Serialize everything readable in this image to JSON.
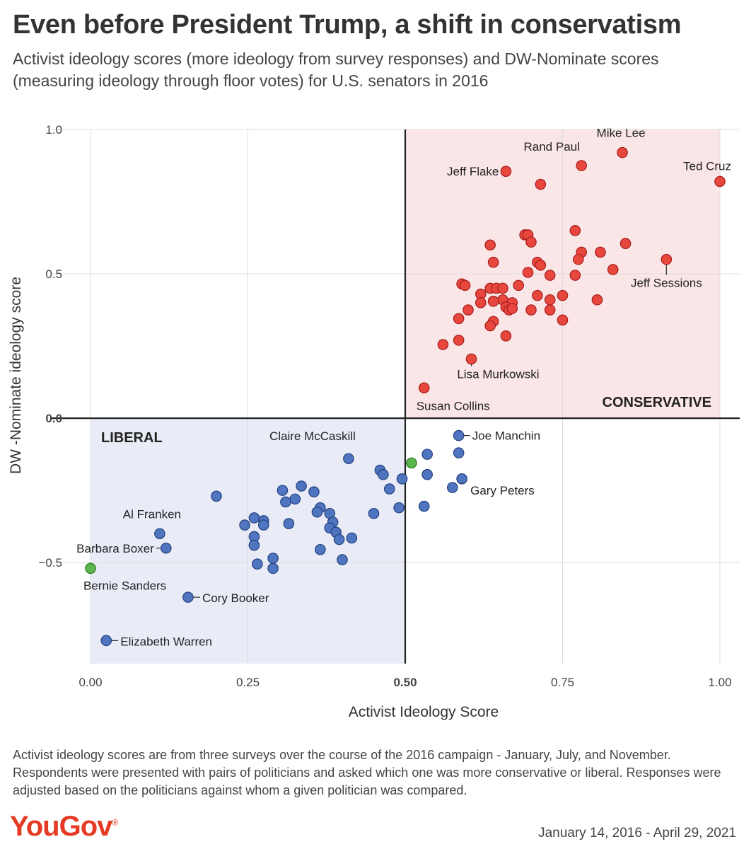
{
  "title": "Even before President Trump, a shift in conservatism",
  "subtitle": "Activist ideology scores (more ideology from survey responses) and DW-Nominate scores (measuring ideology through floor votes) for U.S. senators in 2016",
  "footnote": "Activist ideology scores are from three surveys over the course of the 2016 campaign - January, July, and November. Respondents were presented with pairs of politicians and asked which one was more conservative or liberal. Responses were adjusted based on the politicians against whom a given politician was compared.",
  "logo": "YouGov",
  "logo_mark": "®",
  "date_range": "January 14, 2016 - April 29, 2021",
  "colors": {
    "republican": "#e8473e",
    "republican_edge": "#a51d1d",
    "democrat": "#4f74c0",
    "democrat_edge": "#24427e",
    "independent": "#5ab64a",
    "independent_edge": "#2f7a27",
    "conservative_region": "#fbe6e7",
    "liberal_region": "#e9ecf6",
    "grid": "#dcdcdc"
  },
  "chart_data": {
    "type": "scatter",
    "title": "Even before President Trump, a shift in conservatism",
    "xlabel": "Activist Ideology Score",
    "ylabel": "DW -Nominate ideology score",
    "xlim": [
      0,
      1
    ],
    "ylim": [
      -0.85,
      1.0
    ],
    "xticks": [
      "0.00",
      "0.25",
      "0.50",
      "0.75",
      "1.00"
    ],
    "xtick_values": [
      0,
      0.25,
      0.5,
      0.75,
      1.0
    ],
    "yticks": [
      "1.0",
      "0.5",
      "0.0",
      "−0.5"
    ],
    "ytick_values": [
      1.0,
      0.5,
      0.0,
      -0.5
    ],
    "bold_ticks": [
      "0.50",
      "0.0"
    ],
    "grid": true,
    "region_labels": [
      "CONSERVATIVE",
      "LIBERAL"
    ],
    "series": [
      {
        "party": "republican",
        "points": [
          [
            1.0,
            0.82
          ],
          [
            0.845,
            0.92
          ],
          [
            0.78,
            0.875
          ],
          [
            0.66,
            0.855
          ],
          [
            0.715,
            0.81
          ],
          [
            0.915,
            0.55
          ],
          [
            0.605,
            0.205
          ],
          [
            0.53,
            0.105
          ],
          [
            0.77,
            0.65
          ],
          [
            0.69,
            0.635
          ],
          [
            0.695,
            0.635
          ],
          [
            0.7,
            0.61
          ],
          [
            0.85,
            0.605
          ],
          [
            0.635,
            0.6
          ],
          [
            0.78,
            0.575
          ],
          [
            0.81,
            0.575
          ],
          [
            0.64,
            0.54
          ],
          [
            0.71,
            0.54
          ],
          [
            0.775,
            0.55
          ],
          [
            0.715,
            0.53
          ],
          [
            0.83,
            0.515
          ],
          [
            0.695,
            0.505
          ],
          [
            0.73,
            0.495
          ],
          [
            0.77,
            0.495
          ],
          [
            0.59,
            0.465
          ],
          [
            0.595,
            0.46
          ],
          [
            0.68,
            0.46
          ],
          [
            0.635,
            0.45
          ],
          [
            0.645,
            0.45
          ],
          [
            0.655,
            0.45
          ],
          [
            0.62,
            0.43
          ],
          [
            0.71,
            0.425
          ],
          [
            0.75,
            0.425
          ],
          [
            0.655,
            0.41
          ],
          [
            0.64,
            0.405
          ],
          [
            0.67,
            0.4
          ],
          [
            0.73,
            0.41
          ],
          [
            0.805,
            0.41
          ],
          [
            0.62,
            0.4
          ],
          [
            0.66,
            0.385
          ],
          [
            0.665,
            0.375
          ],
          [
            0.67,
            0.38
          ],
          [
            0.6,
            0.375
          ],
          [
            0.7,
            0.375
          ],
          [
            0.73,
            0.375
          ],
          [
            0.585,
            0.345
          ],
          [
            0.64,
            0.335
          ],
          [
            0.75,
            0.34
          ],
          [
            0.635,
            0.32
          ],
          [
            0.66,
            0.285
          ],
          [
            0.585,
            0.27
          ],
          [
            0.56,
            0.255
          ]
        ]
      },
      {
        "party": "democrat",
        "points": [
          [
            0.585,
            -0.06
          ],
          [
            0.41,
            -0.14
          ],
          [
            0.59,
            -0.21
          ],
          [
            0.025,
            -0.77
          ],
          [
            0.155,
            -0.62
          ],
          [
            0.12,
            -0.45
          ],
          [
            0.11,
            -0.4
          ],
          [
            0.535,
            -0.125
          ],
          [
            0.585,
            -0.12
          ],
          [
            0.46,
            -0.18
          ],
          [
            0.465,
            -0.195
          ],
          [
            0.535,
            -0.195
          ],
          [
            0.495,
            -0.21
          ],
          [
            0.575,
            -0.24
          ],
          [
            0.475,
            -0.245
          ],
          [
            0.305,
            -0.25
          ],
          [
            0.355,
            -0.255
          ],
          [
            0.335,
            -0.235
          ],
          [
            0.2,
            -0.27
          ],
          [
            0.325,
            -0.28
          ],
          [
            0.31,
            -0.29
          ],
          [
            0.365,
            -0.31
          ],
          [
            0.49,
            -0.31
          ],
          [
            0.53,
            -0.305
          ],
          [
            0.36,
            -0.325
          ],
          [
            0.45,
            -0.33
          ],
          [
            0.38,
            -0.33
          ],
          [
            0.26,
            -0.345
          ],
          [
            0.275,
            -0.355
          ],
          [
            0.385,
            -0.36
          ],
          [
            0.245,
            -0.37
          ],
          [
            0.275,
            -0.37
          ],
          [
            0.315,
            -0.365
          ],
          [
            0.38,
            -0.38
          ],
          [
            0.39,
            -0.395
          ],
          [
            0.26,
            -0.41
          ],
          [
            0.395,
            -0.42
          ],
          [
            0.415,
            -0.415
          ],
          [
            0.26,
            -0.44
          ],
          [
            0.365,
            -0.455
          ],
          [
            0.29,
            -0.485
          ],
          [
            0.4,
            -0.49
          ],
          [
            0.265,
            -0.505
          ],
          [
            0.29,
            -0.52
          ]
        ]
      },
      {
        "party": "independent",
        "points": [
          [
            0.0,
            -0.52
          ],
          [
            0.51,
            -0.155
          ]
        ]
      }
    ],
    "annotations": [
      {
        "text": "Ted Cruz",
        "x": 1.0,
        "y": 0.82
      },
      {
        "text": "Mike Lee",
        "x": 0.845,
        "y": 0.92
      },
      {
        "text": "Rand Paul",
        "x": 0.78,
        "y": 0.875
      },
      {
        "text": "Jeff Flake",
        "x": 0.66,
        "y": 0.855
      },
      {
        "text": "Jeff Sessions",
        "x": 0.915,
        "y": 0.55
      },
      {
        "text": "Lisa Murkowski",
        "x": 0.605,
        "y": 0.205
      },
      {
        "text": "Susan Collins",
        "x": 0.53,
        "y": 0.105
      },
      {
        "text": "Joe Manchin",
        "x": 0.585,
        "y": -0.06
      },
      {
        "text": "Claire McCaskill",
        "x": 0.41,
        "y": -0.14
      },
      {
        "text": "Gary Peters",
        "x": 0.59,
        "y": -0.21
      },
      {
        "text": "Al Franken",
        "x": 0.11,
        "y": -0.4
      },
      {
        "text": "Barbara Boxer",
        "x": 0.12,
        "y": -0.45
      },
      {
        "text": "Bernie Sanders",
        "x": 0.0,
        "y": -0.52
      },
      {
        "text": "Cory Booker",
        "x": 0.155,
        "y": -0.62
      },
      {
        "text": "Elizabeth Warren",
        "x": 0.025,
        "y": -0.77
      }
    ]
  }
}
